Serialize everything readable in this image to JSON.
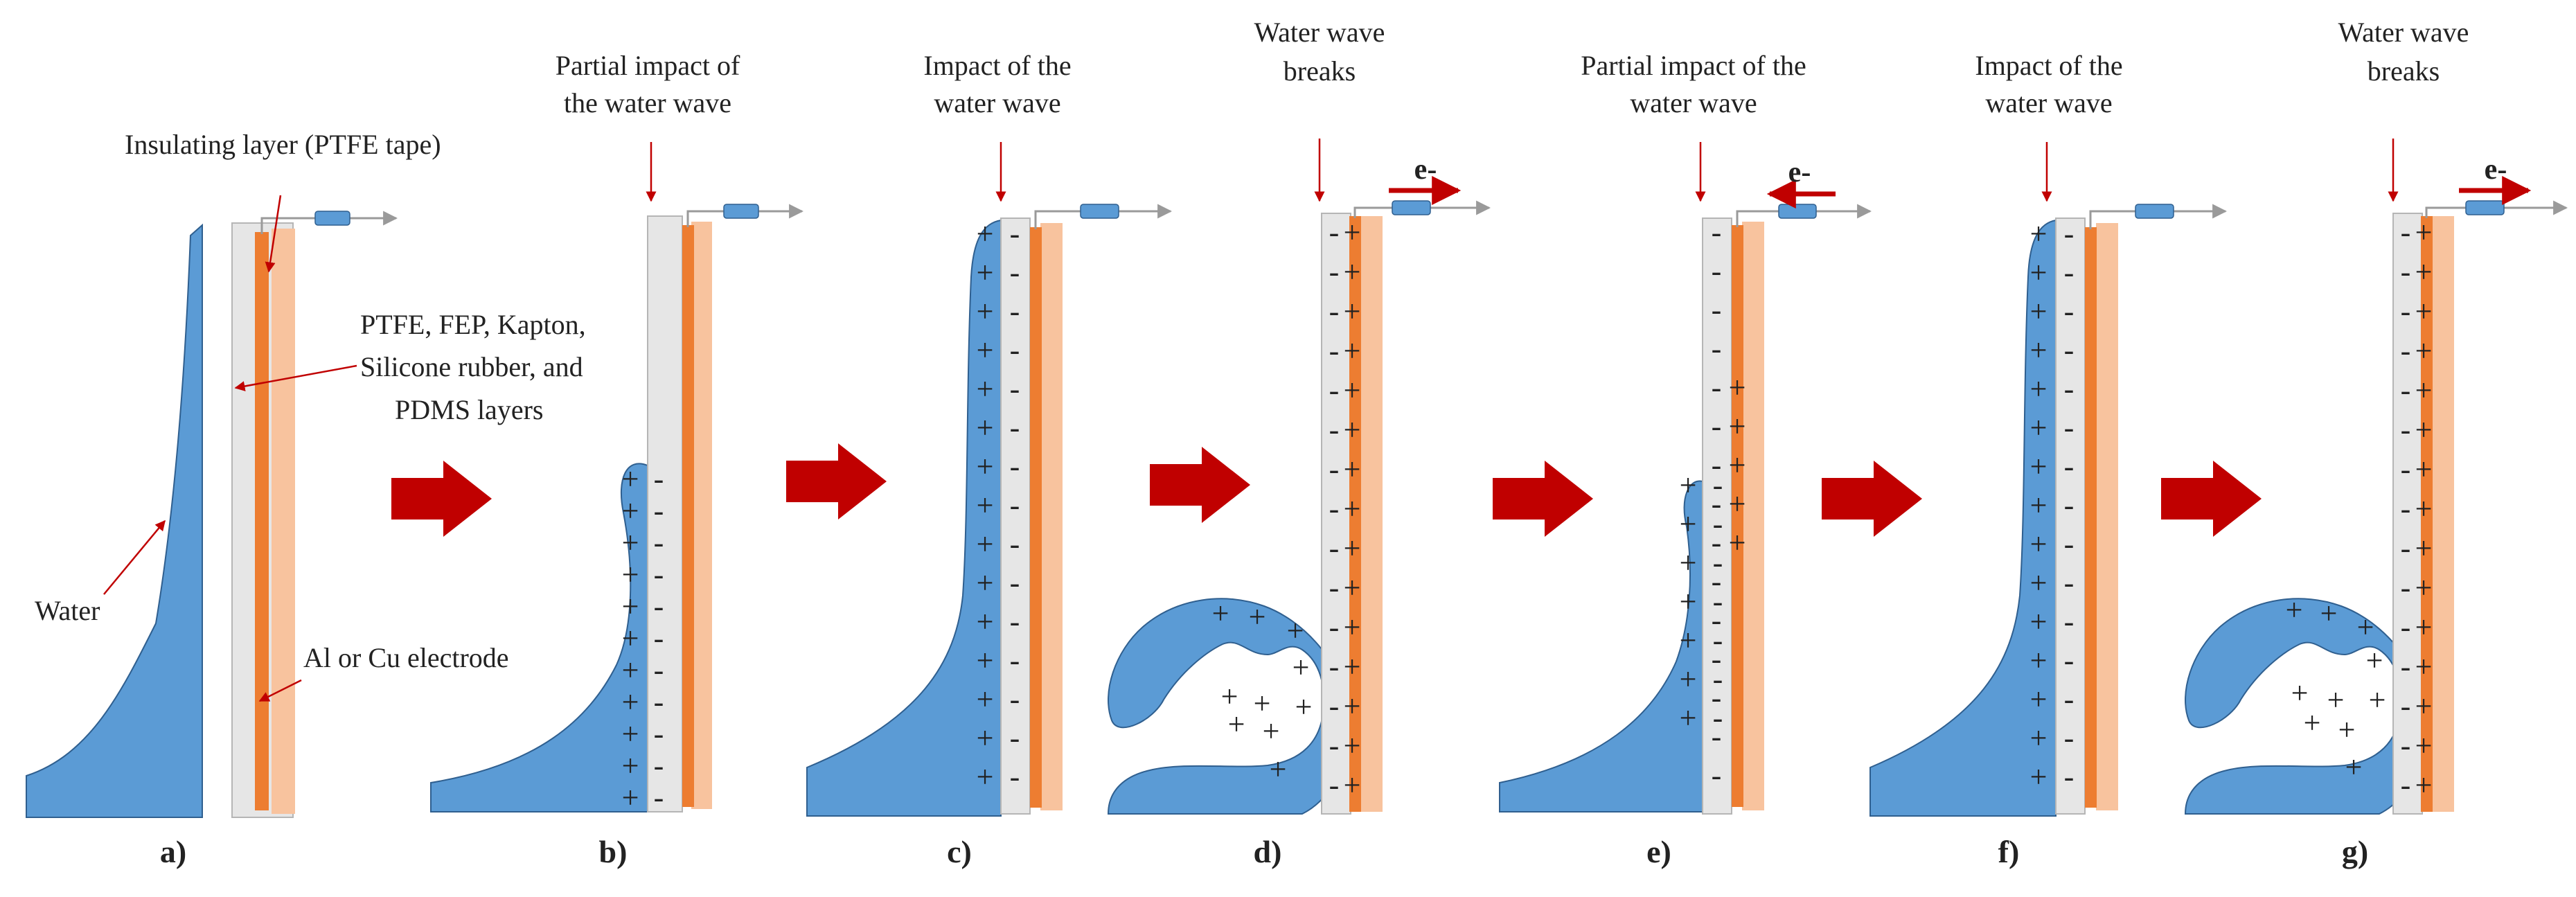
{
  "colors": {
    "water": "#5b9bd5",
    "water_stroke": "#2f5f8f",
    "dielectric": "#e6e6e6",
    "dielectric_stroke": "#b5b5b5",
    "electrode": "#ed7d31",
    "tape": "#f8c39e",
    "arrow": "#c00000",
    "wire": "#9a9a9a",
    "resistor": "#5b9bd5"
  },
  "annotations": {
    "insulating_layer": "Insulating layer (PTFE tape)",
    "dielectric_line1": "PTFE, FEP, Kapton,",
    "dielectric_line2": "Silicone rubber, and",
    "dielectric_line3": "PDMS layers",
    "water": "Water",
    "electrode": "Al or Cu electrode"
  },
  "panels": [
    {
      "id": "a",
      "label": "a)",
      "caption_lines": [],
      "electron_flow": ""
    },
    {
      "id": "b",
      "label": "b)",
      "caption_lines": [
        "Partial impact of",
        "the water wave"
      ],
      "electron_flow": ""
    },
    {
      "id": "c",
      "label": "c)",
      "caption_lines": [
        "Impact of the",
        "water wave"
      ],
      "electron_flow": ""
    },
    {
      "id": "d",
      "label": "d)",
      "caption_lines": [
        "Water wave",
        "breaks"
      ],
      "electron_flow": "right"
    },
    {
      "id": "e",
      "label": "e)",
      "caption_lines": [
        "Partial impact of the",
        "water wave"
      ],
      "electron_flow": "left"
    },
    {
      "id": "f",
      "label": "f)",
      "caption_lines": [
        "Impact of the",
        "water wave"
      ],
      "electron_flow": ""
    },
    {
      "id": "g",
      "label": "g)",
      "caption_lines": [
        "Water wave",
        "breaks"
      ],
      "electron_flow": "right"
    }
  ],
  "symbols": {
    "electron": "e-",
    "plus": "+",
    "minus": "-"
  }
}
